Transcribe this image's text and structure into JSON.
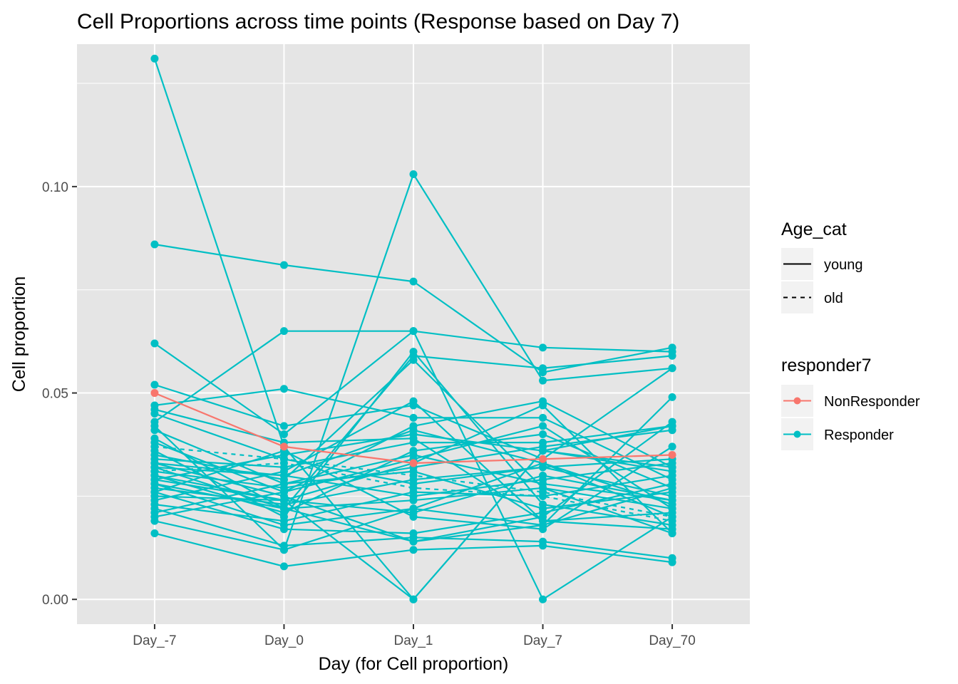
{
  "chart_data": {
    "type": "line",
    "title": "Cell Proportions across time points (Response based on Day 7)",
    "xlabel": "Day (for Cell proportion)",
    "ylabel": "Cell proportion",
    "categories": [
      "Day_-7",
      "Day_0",
      "Day_1",
      "Day_7",
      "Day_70"
    ],
    "ylim": [
      -0.006,
      0.1345
    ],
    "yticks": [
      {
        "value": 0.0,
        "label": "0.00"
      },
      {
        "value": 0.05,
        "label": "0.05"
      },
      {
        "value": 0.1,
        "label": "0.10"
      }
    ],
    "grid": true,
    "legend_placement": "right",
    "legends": [
      {
        "title": "Age_cat",
        "kind": "linetype",
        "entries": [
          {
            "label": "young",
            "linetype": "solid"
          },
          {
            "label": "old",
            "linetype": "dashed"
          }
        ]
      },
      {
        "title": "responder7",
        "kind": "color",
        "entries": [
          {
            "label": "NonResponder",
            "color": "#F8766D"
          },
          {
            "label": "Responder",
            "color": "#00BFC4"
          }
        ]
      }
    ],
    "colors": {
      "NonResponder": "#F8766D",
      "Responder": "#00BFC4",
      "panel": "#E5E5E5",
      "grid": "#FFFFFF"
    },
    "series": [
      {
        "group": "Responder",
        "linetype": "solid",
        "values": [
          0.131,
          0.037,
          0.0,
          0.036,
          0.032
        ]
      },
      {
        "group": "Responder",
        "linetype": "solid",
        "values": [
          0.086,
          0.081,
          0.077,
          0.055,
          0.061
        ]
      },
      {
        "group": "Responder",
        "linetype": "solid",
        "values": [
          0.062,
          0.04,
          0.065,
          0.0,
          0.02
        ]
      },
      {
        "group": "Responder",
        "linetype": "solid",
        "values": [
          0.052,
          0.042,
          0.047,
          0.034,
          0.056
        ]
      },
      {
        "group": "NonResponder",
        "linetype": "solid",
        "values": [
          0.05,
          0.037,
          0.033,
          0.034,
          0.035
        ]
      },
      {
        "group": "Responder",
        "linetype": "solid",
        "values": [
          0.047,
          0.051,
          0.044,
          0.044,
          0.029
        ]
      },
      {
        "group": "Responder",
        "linetype": "solid",
        "values": [
          0.046,
          0.038,
          0.039,
          0.019,
          0.021
        ]
      },
      {
        "group": "Responder",
        "linetype": "solid",
        "values": [
          0.045,
          0.034,
          0.028,
          0.032,
          0.025
        ]
      },
      {
        "group": "Responder",
        "linetype": "solid",
        "values": [
          0.043,
          0.065,
          0.065,
          0.061,
          0.06
        ]
      },
      {
        "group": "Responder",
        "linetype": "solid",
        "values": [
          0.042,
          0.012,
          0.103,
          0.053,
          0.056
        ]
      },
      {
        "group": "Responder",
        "linetype": "solid",
        "values": [
          0.041,
          0.028,
          0.035,
          0.028,
          0.024
        ]
      },
      {
        "group": "Responder",
        "linetype": "solid",
        "values": [
          0.039,
          0.022,
          0.059,
          0.056,
          0.059
        ]
      },
      {
        "group": "Responder",
        "linetype": "solid",
        "values": [
          0.038,
          0.026,
          0.042,
          0.048,
          0.032
        ]
      },
      {
        "group": "Responder",
        "linetype": "dashed",
        "values": [
          0.037,
          0.034,
          0.03,
          0.026,
          0.02
        ]
      },
      {
        "group": "Responder",
        "linetype": "solid",
        "values": [
          0.036,
          0.02,
          0.06,
          0.023,
          0.018
        ]
      },
      {
        "group": "Responder",
        "linetype": "solid",
        "values": [
          0.034,
          0.032,
          0.038,
          0.038,
          0.042
        ]
      },
      {
        "group": "Responder",
        "linetype": "solid",
        "values": [
          0.033,
          0.03,
          0.025,
          0.029,
          0.033
        ]
      },
      {
        "group": "Responder",
        "linetype": "solid",
        "values": [
          0.033,
          0.025,
          0.014,
          0.02,
          0.043
        ]
      },
      {
        "group": "Responder",
        "linetype": "solid",
        "values": [
          0.032,
          0.03,
          0.041,
          0.033,
          0.023
        ]
      },
      {
        "group": "Responder",
        "linetype": "dashed",
        "values": [
          0.031,
          0.033,
          0.027,
          0.025,
          0.019
        ]
      },
      {
        "group": "Responder",
        "linetype": "solid",
        "values": [
          0.031,
          0.027,
          0.032,
          0.037,
          0.041
        ]
      },
      {
        "group": "Responder",
        "linetype": "solid",
        "values": [
          0.03,
          0.024,
          0.033,
          0.047,
          0.016
        ]
      },
      {
        "group": "Responder",
        "linetype": "solid",
        "values": [
          0.03,
          0.021,
          0.036,
          0.04,
          0.027
        ]
      },
      {
        "group": "Responder",
        "linetype": "solid",
        "values": [
          0.029,
          0.035,
          0.04,
          0.036,
          0.031
        ]
      },
      {
        "group": "Responder",
        "linetype": "solid",
        "values": [
          0.028,
          0.022,
          0.024,
          0.027,
          0.022
        ]
      },
      {
        "group": "Responder",
        "linetype": "solid",
        "values": [
          0.028,
          0.018,
          0.022,
          0.018,
          0.049
        ]
      },
      {
        "group": "Responder",
        "linetype": "solid",
        "values": [
          0.027,
          0.023,
          0.029,
          0.032,
          0.034
        ]
      },
      {
        "group": "Responder",
        "linetype": "solid",
        "values": [
          0.026,
          0.017,
          0.016,
          0.021,
          0.028
        ]
      },
      {
        "group": "Responder",
        "linetype": "solid",
        "values": [
          0.025,
          0.024,
          0.021,
          0.03,
          0.024
        ]
      },
      {
        "group": "Responder",
        "linetype": "solid",
        "values": [
          0.024,
          0.031,
          0.048,
          0.019,
          0.017
        ]
      },
      {
        "group": "Responder",
        "linetype": "solid",
        "values": [
          0.023,
          0.019,
          0.026,
          0.025,
          0.03
        ]
      },
      {
        "group": "Responder",
        "linetype": "solid",
        "values": [
          0.022,
          0.013,
          0.015,
          0.014,
          0.01
        ]
      },
      {
        "group": "Responder",
        "linetype": "solid",
        "values": [
          0.021,
          0.028,
          0.031,
          0.022,
          0.026
        ]
      },
      {
        "group": "Responder",
        "linetype": "solid",
        "values": [
          0.02,
          0.026,
          0.034,
          0.042,
          0.022
        ]
      },
      {
        "group": "Responder",
        "linetype": "solid",
        "values": [
          0.019,
          0.012,
          0.022,
          0.033,
          0.02
        ]
      },
      {
        "group": "Responder",
        "linetype": "solid",
        "values": [
          0.016,
          0.008,
          0.012,
          0.013,
          0.009
        ]
      },
      {
        "group": "Responder",
        "linetype": "solid",
        "values": [
          0.032,
          0.022,
          0.014,
          0.018,
          0.027
        ]
      },
      {
        "group": "Responder",
        "linetype": "solid",
        "values": [
          0.026,
          0.036,
          0.02,
          0.017,
          0.037
        ]
      },
      {
        "group": "Responder",
        "linetype": "solid",
        "values": [
          0.035,
          0.029,
          0.058,
          0.027,
          0.016
        ]
      },
      {
        "group": "Responder",
        "linetype": "solid",
        "values": [
          0.029,
          0.024,
          0.0,
          0.036,
          0.042
        ]
      }
    ]
  }
}
